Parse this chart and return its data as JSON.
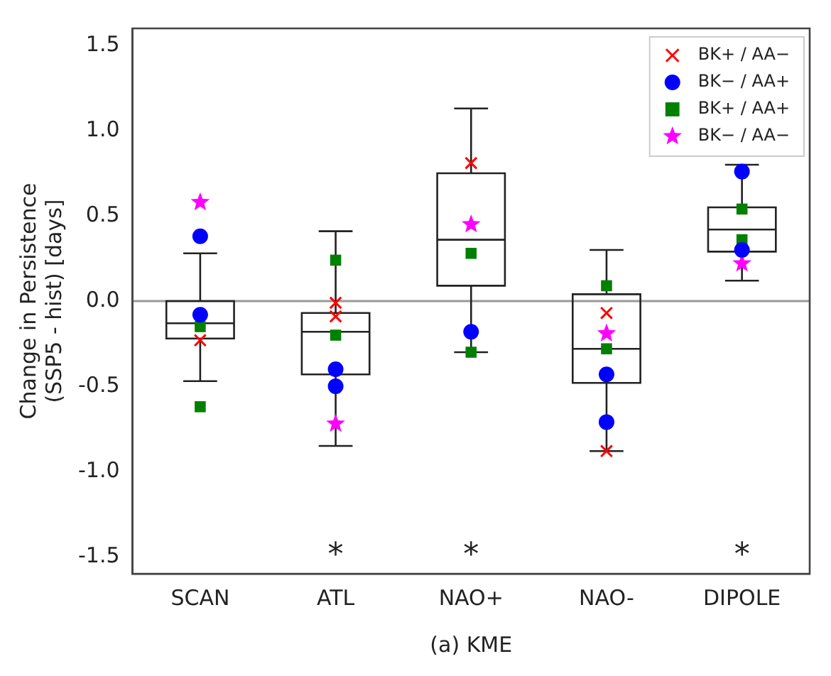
{
  "chart_data": {
    "type": "box",
    "xlabel": "(a) KME",
    "ylabel": "Change in Persistence\n(SSP5 - hist) [days]",
    "categories": [
      "SCAN",
      "ATL",
      "NAO+",
      "NAO-",
      "DIPOLE"
    ],
    "boxes": [
      {
        "low": -0.47,
        "q1": -0.22,
        "median": -0.13,
        "q3": 0.0,
        "high": 0.28
      },
      {
        "low": -0.85,
        "q1": -0.43,
        "median": -0.18,
        "q3": -0.07,
        "high": 0.41
      },
      {
        "low": -0.3,
        "q1": 0.09,
        "median": 0.36,
        "q3": 0.75,
        "high": 1.13
      },
      {
        "low": -0.88,
        "q1": -0.48,
        "median": -0.28,
        "q3": 0.04,
        "high": 0.3
      },
      {
        "low": 0.12,
        "q1": 0.29,
        "median": 0.42,
        "q3": 0.55,
        "high": 0.8
      }
    ],
    "series": [
      {
        "type": "scatter",
        "name": "BK+ / AA−",
        "color": "#ff0000",
        "marker": "cross",
        "x": [
          "SCAN",
          "ATL",
          "ATL",
          "NAO+",
          "NAO-",
          "NAO-"
        ],
        "values": [
          -0.23,
          -0.01,
          -0.09,
          0.81,
          -0.07,
          -0.88
        ]
      },
      {
        "type": "scatter",
        "name": "BK− / AA+",
        "color": "#0000ff",
        "marker": "circle",
        "x": [
          "SCAN",
          "SCAN",
          "ATL",
          "ATL",
          "NAO+",
          "NAO-",
          "NAO-",
          "DIPOLE",
          "DIPOLE"
        ],
        "values": [
          0.38,
          -0.08,
          -0.4,
          -0.5,
          -0.18,
          -0.43,
          -0.71,
          0.76,
          0.3
        ]
      },
      {
        "type": "scatter",
        "name": "BK+ / AA+",
        "color": "#008000",
        "marker": "square",
        "x": [
          "SCAN",
          "SCAN",
          "ATL",
          "ATL",
          "NAO+",
          "NAO+",
          "NAO-",
          "NAO-",
          "DIPOLE",
          "DIPOLE"
        ],
        "values": [
          -0.15,
          -0.62,
          0.24,
          -0.2,
          0.28,
          -0.3,
          0.09,
          -0.28,
          0.54,
          0.36
        ]
      },
      {
        "type": "scatter",
        "name": "BK− / AA−",
        "color": "#ff00ff",
        "marker": "star",
        "x": [
          "SCAN",
          "ATL",
          "NAO+",
          "NAO-",
          "DIPOLE"
        ],
        "values": [
          0.58,
          -0.72,
          0.45,
          -0.19,
          0.22
        ]
      }
    ],
    "ylim": [
      -1.6,
      1.6
    ],
    "yticks": [
      -1.5,
      {
        "value": -1,
        "label": "-1.0"
      },
      -0.5,
      {
        "value": 0,
        "label": "0.0"
      },
      0.5,
      {
        "value": 1,
        "label": "1.0"
      },
      1.5
    ],
    "ref_lines": [
      {
        "axis": "y",
        "value": 0,
        "color": "#999999"
      }
    ],
    "annotations": [
      "*",
      "*",
      "*"
    ],
    "legend": "top right",
    "grid": false
  }
}
